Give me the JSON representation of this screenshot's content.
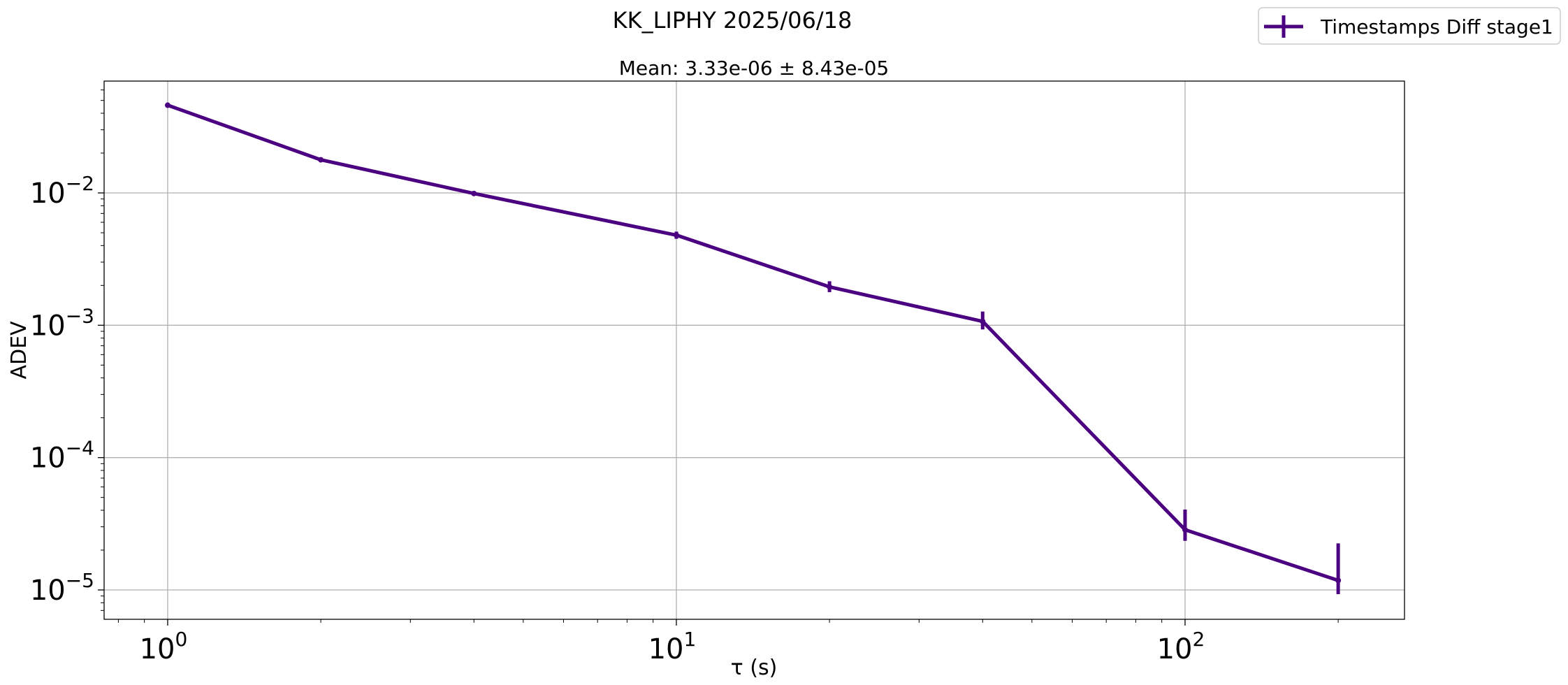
{
  "chart_data": {
    "type": "line",
    "suptitle": "KK_LIPHY 2025/06/18",
    "title": "Mean: 3.33e-06 ± 8.43e-05",
    "xlabel": "τ (s)",
    "ylabel": "ADEV",
    "xscale": "log",
    "yscale": "log",
    "xlim": [
      0.75,
      270
    ],
    "ylim": [
      6e-06,
      0.07
    ],
    "grid": true,
    "legend_position": "top-right",
    "x_ticks": [
      {
        "value": 1,
        "base": "10",
        "exp": "0"
      },
      {
        "value": 10,
        "base": "10",
        "exp": "1"
      },
      {
        "value": 100,
        "base": "10",
        "exp": "2"
      }
    ],
    "y_ticks": [
      {
        "value": 0.01,
        "base": "10",
        "exp": "−2"
      },
      {
        "value": 0.001,
        "base": "10",
        "exp": "−3"
      },
      {
        "value": 0.0001,
        "base": "10",
        "exp": "−4"
      },
      {
        "value": 1e-05,
        "base": "10",
        "exp": "−5"
      }
    ],
    "series": [
      {
        "name": "Timestamps Diff stage1",
        "color": "#4b0082",
        "x": [
          1,
          2,
          4,
          10,
          20,
          40,
          100,
          200
        ],
        "y": [
          0.046,
          0.0178,
          0.0099,
          0.0048,
          0.00195,
          0.00107,
          2.85e-05,
          1.18e-05
        ],
        "err_low": [
          0.0454,
          0.0174,
          0.0096,
          0.0045,
          0.00178,
          0.00093,
          2.35e-05,
          9.3e-06
        ],
        "err_high": [
          0.0466,
          0.0182,
          0.0102,
          0.0051,
          0.00215,
          0.00127,
          4.05e-05,
          2.25e-05
        ]
      }
    ]
  }
}
